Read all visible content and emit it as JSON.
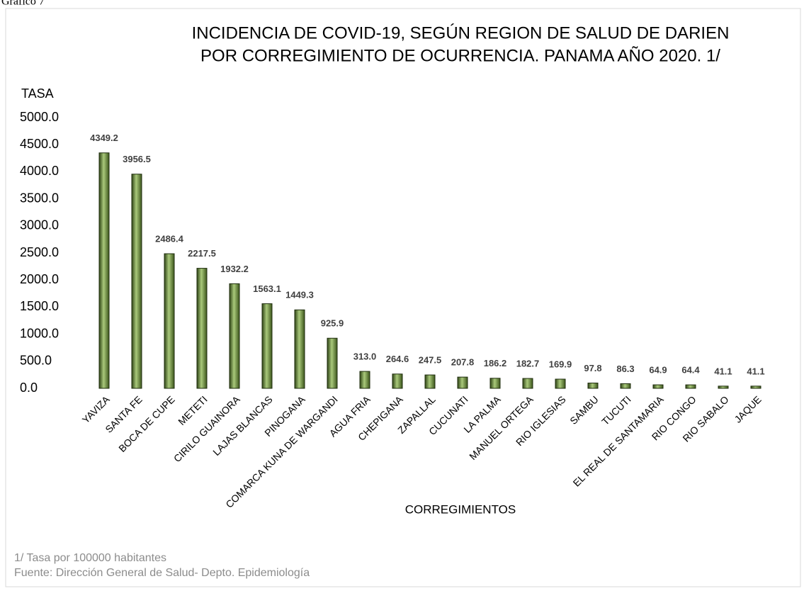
{
  "caption": "Gráfico 7",
  "chart_data": {
    "type": "bar",
    "title": [
      "INCIDENCIA DE COVID-19, SEGÚN REGION DE SALUD DE DARIEN",
      "POR CORREGIMIENTO DE OCURRENCIA. PANAMA AÑO 2020. 1/"
    ],
    "y_label": "TASA",
    "x_label": "CORREGIMIENTOS",
    "categories": [
      "YAVIZA",
      "SANTA FE",
      "BOCA DE CUPE",
      "METETI",
      "CIRILO GUAINORA",
      "LAJAS BLANCAS",
      "PINOGANA",
      "COMARCA KUNA DE WARGANDI",
      "AGUA FRIA",
      "CHEPIGANA",
      "ZAPALLAL",
      "CUCUNATI",
      "LA PALMA",
      "MANUEL ORTEGA",
      "RIO IGLESIAS",
      "SAMBU",
      "TUCUTI",
      "EL REAL DE SANTAMARIA",
      "RIO CONGO",
      "RIO SABALO",
      "JAQUE"
    ],
    "values": [
      4349.2,
      3956.5,
      2486.4,
      2217.5,
      1932.2,
      1563.1,
      1449.3,
      925.9,
      313.0,
      264.6,
      247.5,
      207.8,
      186.2,
      182.7,
      169.9,
      97.8,
      86.3,
      64.9,
      64.4,
      41.1,
      41.1
    ],
    "value_labels": [
      "4349.2",
      "3956.5",
      "2486.4",
      "2217.5",
      "1932.2",
      "1563.1",
      "1449.3",
      "925.9",
      "313.0",
      "264.6",
      "247.5",
      "207.8",
      "186.2",
      "182.7",
      "169.9",
      "97.8",
      "86.3",
      "64.9",
      "64.4",
      "41.1",
      "41.1"
    ],
    "color": "#6b8f3c",
    "ylim": [
      0,
      5000
    ],
    "yticks": [
      {
        "value": 0,
        "label": "0.0"
      },
      {
        "value": 500,
        "label": "500.0"
      },
      {
        "value": 1000,
        "label": "1000.0"
      },
      {
        "value": 1500,
        "label": "1500.0"
      },
      {
        "value": 2000,
        "label": "2000.0"
      },
      {
        "value": 2500,
        "label": "2500.0"
      },
      {
        "value": 3000,
        "label": "3000.0"
      },
      {
        "value": 3500,
        "label": "3500.0"
      },
      {
        "value": 4000,
        "label": "4000.0"
      },
      {
        "value": 4500,
        "label": "4500.0"
      },
      {
        "value": 5000,
        "label": "5000.0"
      }
    ],
    "grid": false,
    "note": "1/ Tasa por 100000 habitantes",
    "source": "Fuente: Dirección General de Salud- Depto. Epidemiología"
  }
}
